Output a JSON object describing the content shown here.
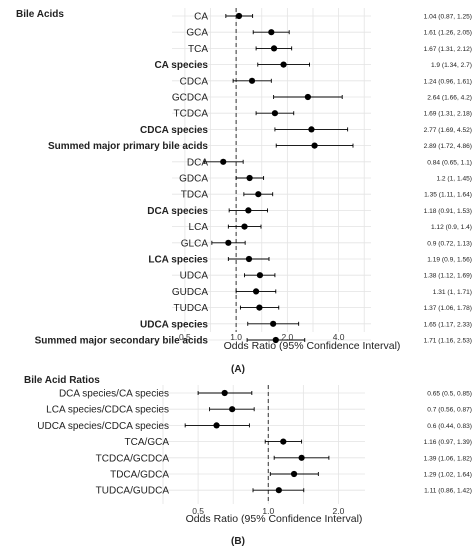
{
  "chart_data": [
    {
      "type": "forest",
      "panel": "(A)",
      "title": "Bile Acids",
      "xlabel": "Odds Ratio (95% Confidence Interval)",
      "x_scale": "log",
      "xlim": [
        0.42,
        6.2
      ],
      "x_ticks": [
        0.5,
        1.0,
        2.0,
        4.0
      ],
      "x_tick_labels": [
        "0.5",
        "1.0",
        "2.0",
        "4.0"
      ],
      "reference_line": 1.0,
      "grid": true,
      "rows": [
        {
          "label": "CA",
          "bold": false,
          "or": 1.04,
          "lo": 0.87,
          "hi": 1.25,
          "text": "1.04 (0.87, 1.25)"
        },
        {
          "label": "GCA",
          "bold": false,
          "or": 1.61,
          "lo": 1.26,
          "hi": 2.05,
          "text": "1.61 (1.26, 2.05)"
        },
        {
          "label": "TCA",
          "bold": false,
          "or": 1.67,
          "lo": 1.31,
          "hi": 2.12,
          "text": "1.67 (1.31, 2.12)"
        },
        {
          "label": "CA species",
          "bold": true,
          "or": 1.9,
          "lo": 1.34,
          "hi": 2.7,
          "text": "1.9 (1.34, 2.7)"
        },
        {
          "label": "CDCA",
          "bold": false,
          "or": 1.24,
          "lo": 0.96,
          "hi": 1.61,
          "text": "1.24 (0.96, 1.61)"
        },
        {
          "label": "GCDCA",
          "bold": false,
          "or": 2.64,
          "lo": 1.66,
          "hi": 4.2,
          "text": "2.64 (1.66, 4.2)"
        },
        {
          "label": "TCDCA",
          "bold": false,
          "or": 1.69,
          "lo": 1.31,
          "hi": 2.18,
          "text": "1.69 (1.31, 2.18)"
        },
        {
          "label": "CDCA species",
          "bold": true,
          "or": 2.77,
          "lo": 1.69,
          "hi": 4.52,
          "text": "2.77 (1.69, 4.52)"
        },
        {
          "label": "Summed major primary bile acids",
          "bold": true,
          "or": 2.89,
          "lo": 1.72,
          "hi": 4.86,
          "text": "2.89 (1.72, 4.86)"
        },
        {
          "label": "DCA",
          "bold": false,
          "or": 0.84,
          "lo": 0.65,
          "hi": 1.1,
          "text": "0.84 (0.65, 1.1)"
        },
        {
          "label": "GDCA",
          "bold": false,
          "or": 1.2,
          "lo": 1,
          "hi": 1.45,
          "text": "1.2 (1, 1.45)"
        },
        {
          "label": "TDCA",
          "bold": false,
          "or": 1.35,
          "lo": 1.11,
          "hi": 1.64,
          "text": "1.35 (1.11, 1.64)"
        },
        {
          "label": "DCA species",
          "bold": true,
          "or": 1.18,
          "lo": 0.91,
          "hi": 1.53,
          "text": "1.18 (0.91, 1.53)"
        },
        {
          "label": "LCA",
          "bold": false,
          "or": 1.12,
          "lo": 0.9,
          "hi": 1.4,
          "text": "1.12 (0.9, 1.4)"
        },
        {
          "label": "GLCA",
          "bold": false,
          "or": 0.9,
          "lo": 0.72,
          "hi": 1.13,
          "text": "0.9 (0.72, 1.13)"
        },
        {
          "label": "LCA species",
          "bold": true,
          "or": 1.19,
          "lo": 0.9,
          "hi": 1.56,
          "text": "1.19 (0.9, 1.56)"
        },
        {
          "label": "UDCA",
          "bold": false,
          "or": 1.38,
          "lo": 1.12,
          "hi": 1.69,
          "text": "1.38 (1.12, 1.69)"
        },
        {
          "label": "GUDCA",
          "bold": false,
          "or": 1.31,
          "lo": 1,
          "hi": 1.71,
          "text": "1.31 (1, 1.71)"
        },
        {
          "label": "TUDCA",
          "bold": false,
          "or": 1.37,
          "lo": 1.06,
          "hi": 1.78,
          "text": "1.37 (1.06, 1.78)"
        },
        {
          "label": "UDCA species",
          "bold": true,
          "or": 1.65,
          "lo": 1.17,
          "hi": 2.33,
          "text": "1.65 (1.17, 2.33)"
        },
        {
          "label": "Summed major secondary bile acids",
          "bold": true,
          "or": 1.71,
          "lo": 1.16,
          "hi": 2.53,
          "text": "1.71 (1.16, 2.53)"
        }
      ]
    },
    {
      "type": "forest",
      "panel": "(B)",
      "title": "Bile Acid Ratios",
      "xlabel": "Odds Ratio (95% Confidence Interval)",
      "x_scale": "log",
      "xlim": [
        0.35,
        2.6
      ],
      "x_ticks": [
        0.5,
        1.0,
        2.0
      ],
      "x_tick_labels": [
        "0.5",
        "1.0",
        "2.0"
      ],
      "reference_line": 1.0,
      "grid": true,
      "rows": [
        {
          "label": "DCA species/CA species",
          "bold": false,
          "or": 0.65,
          "lo": 0.5,
          "hi": 0.85,
          "text": "0.65 (0.5, 0.85)"
        },
        {
          "label": "LCA species/CDCA species",
          "bold": false,
          "or": 0.7,
          "lo": 0.56,
          "hi": 0.87,
          "text": "0.7 (0.56, 0.87)"
        },
        {
          "label": "UDCA species/CDCA species",
          "bold": false,
          "or": 0.6,
          "lo": 0.44,
          "hi": 0.83,
          "text": "0.6 (0.44, 0.83)"
        },
        {
          "label": "TCA/GCA",
          "bold": false,
          "or": 1.16,
          "lo": 0.97,
          "hi": 1.39,
          "text": "1.16 (0.97, 1.39)"
        },
        {
          "label": "TCDCA/GCDCA",
          "bold": false,
          "or": 1.39,
          "lo": 1.06,
          "hi": 1.82,
          "text": "1.39 (1.06, 1.82)"
        },
        {
          "label": "TDCA/GDCA",
          "bold": false,
          "or": 1.29,
          "lo": 1.02,
          "hi": 1.64,
          "text": "1.29 (1.02, 1.64)"
        },
        {
          "label": "TUDCA/GUDCA",
          "bold": false,
          "or": 1.11,
          "lo": 0.86,
          "hi": 1.42,
          "text": "1.11 (0.86, 1.42)"
        }
      ]
    }
  ]
}
